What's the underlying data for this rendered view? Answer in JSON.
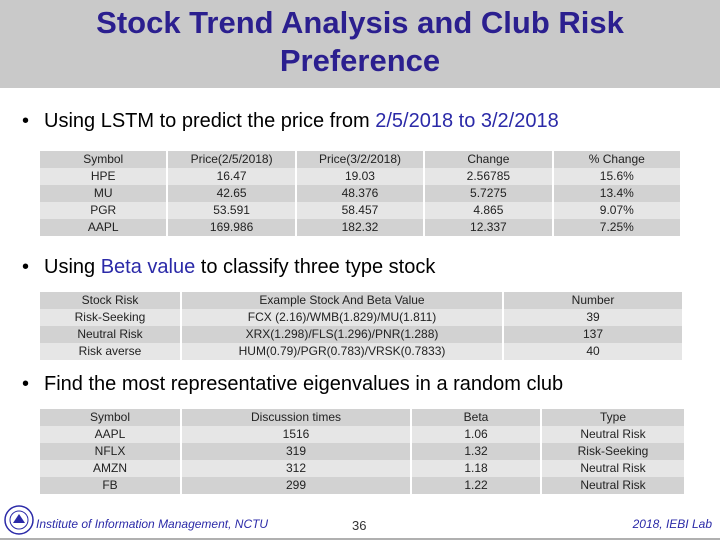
{
  "title_line1": "Stock Trend Analysis and Club Risk",
  "title_line2": "Preference",
  "bullet1": {
    "prefix": "Using LSTM to predict the price from ",
    "highlight": "2/5/2018 to 3/2/2018"
  },
  "table1": {
    "headers": [
      "Symbol",
      "Price(2/5/2018)",
      "Price(3/2/2018)",
      "Change",
      "% Change"
    ],
    "rows": [
      [
        "HPE",
        "16.47",
        "19.03",
        "2.56785",
        "15.6%"
      ],
      [
        "MU",
        "42.65",
        "48.376",
        "5.7275",
        "13.4%"
      ],
      [
        "PGR",
        "53.591",
        "58.457",
        "4.865",
        "9.07%"
      ],
      [
        "AAPL",
        "169.986",
        "182.32",
        "12.337",
        "7.25%"
      ]
    ]
  },
  "bullet2": {
    "prefix": "Using ",
    "highlight": "Beta value",
    "suffix": " to classify three type stock"
  },
  "table2": {
    "headers": [
      "Stock Risk",
      "Example Stock And Beta Value",
      "Number"
    ],
    "rows": [
      [
        "Risk-Seeking",
        "FCX (2.16)/WMB(1.829)/MU(1.811)",
        "39"
      ],
      [
        "Neutral Risk",
        "XRX(1.298)/FLS(1.296)/PNR(1.288)",
        "137"
      ],
      [
        "Risk averse",
        "HUM(0.79)/PGR(0.783)/VRSK(0.7833)",
        "40"
      ]
    ]
  },
  "bullet3": {
    "text": "Find the most representative eigenvalues in a random club"
  },
  "table3": {
    "headers": [
      "Symbol",
      "Discussion times",
      "Beta",
      "Type"
    ],
    "rows": [
      [
        "AAPL",
        "1516",
        "1.06",
        "Neutral Risk"
      ],
      [
        "NFLX",
        "319",
        "1.32",
        "Risk-Seeking"
      ],
      [
        "AMZN",
        "312",
        "1.18",
        "Neutral Risk"
      ],
      [
        "FB",
        "299",
        "1.22",
        "Neutral Risk"
      ]
    ]
  },
  "footer": {
    "left": "Institute of Information Management, NCTU",
    "page": "36",
    "right": "2018, IEBI Lab",
    "logo_icon": "university-seal-icon"
  },
  "colors": {
    "title": "#2b1f8f",
    "highlight": "#2b2aa8",
    "title_bar": "#c9c9c9"
  }
}
